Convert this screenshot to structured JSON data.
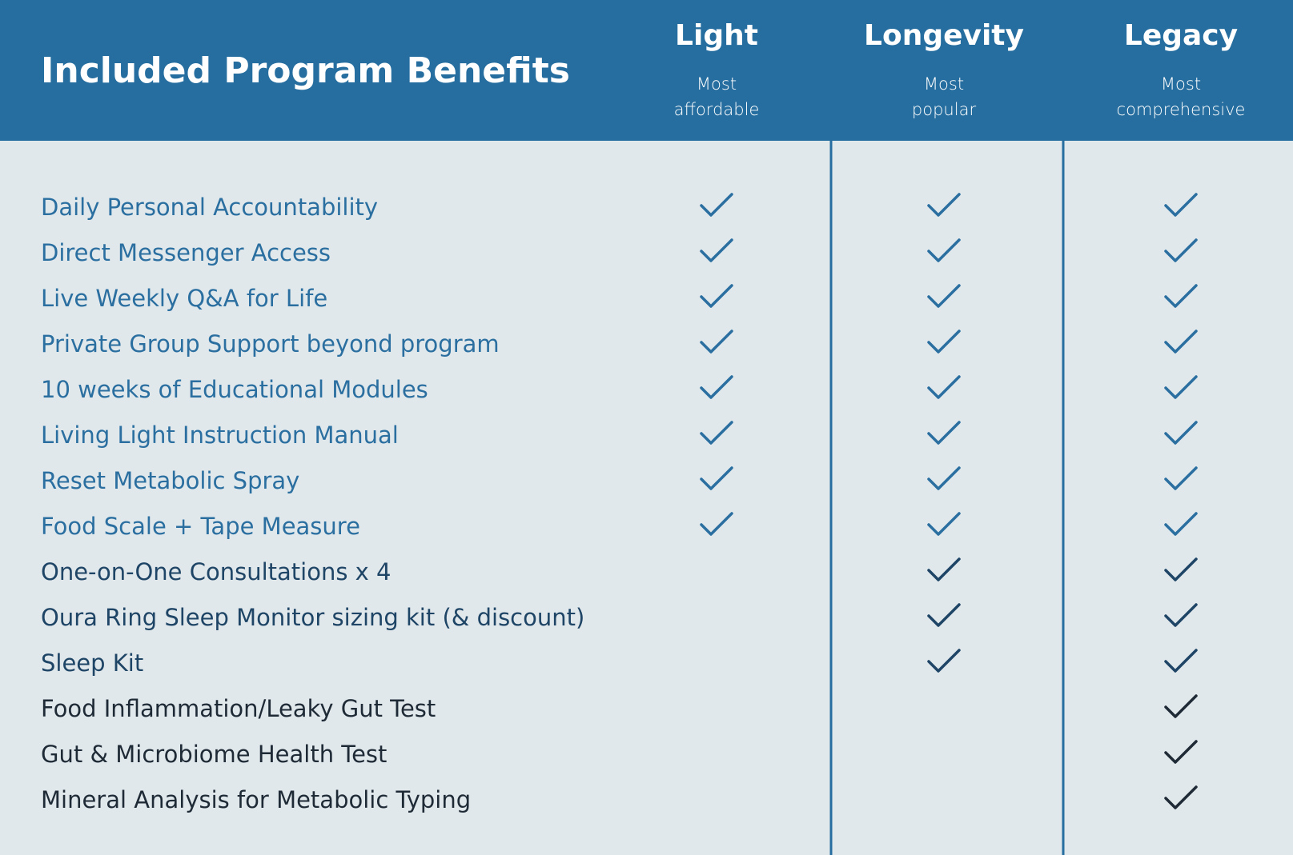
{
  "header": {
    "title": "Included Program Benefits"
  },
  "plans": [
    {
      "name": "Light",
      "subtitle": [
        "Most",
        "affordable"
      ]
    },
    {
      "name": "Longevity",
      "subtitle": [
        "Most",
        "popular"
      ]
    },
    {
      "name": "Legacy",
      "subtitle": [
        "Most",
        "comprehensive"
      ]
    }
  ],
  "rows": [
    {
      "label": "Daily Personal Accountability",
      "included": [
        true,
        true,
        true
      ],
      "color": "#2a6fa0"
    },
    {
      "label": "Direct Messenger Access",
      "included": [
        true,
        true,
        true
      ],
      "color": "#2a6fa0"
    },
    {
      "label": "Live Weekly Q&A for Life",
      "included": [
        true,
        true,
        true
      ],
      "color": "#2a6fa0"
    },
    {
      "label": "Private Group Support beyond program",
      "included": [
        true,
        true,
        true
      ],
      "color": "#2a6fa0"
    },
    {
      "label": "10 weeks of Educational Modules",
      "included": [
        true,
        true,
        true
      ],
      "color": "#2a6fa0"
    },
    {
      "label": "Living Light Instruction Manual",
      "included": [
        true,
        true,
        true
      ],
      "color": "#2a6fa0"
    },
    {
      "label": "Reset Metabolic Spray",
      "included": [
        true,
        true,
        true
      ],
      "color": "#2a6fa0"
    },
    {
      "label": "Food Scale + Tape Measure",
      "included": [
        true,
        true,
        true
      ],
      "color": "#2a6fa0"
    },
    {
      "label": "One-on-One Consultations x 4",
      "included": [
        false,
        true,
        true
      ],
      "color": "#1f4566"
    },
    {
      "label": "Oura Ring Sleep Monitor sizing kit (& discount)",
      "included": [
        false,
        true,
        true
      ],
      "color": "#1f4566"
    },
    {
      "label": "Sleep Kit",
      "included": [
        false,
        true,
        true
      ],
      "color": "#1f4566"
    },
    {
      "label": "Food Inflammation/Leaky Gut Test",
      "included": [
        false,
        false,
        true
      ],
      "color": "#1e2a36"
    },
    {
      "label": "Gut & Microbiome Health Test",
      "included": [
        false,
        false,
        true
      ],
      "color": "#1e2a36"
    },
    {
      "label": "Mineral Analysis for Metabolic Typing",
      "included": [
        false,
        false,
        true
      ],
      "color": "#1e2a36"
    }
  ]
}
